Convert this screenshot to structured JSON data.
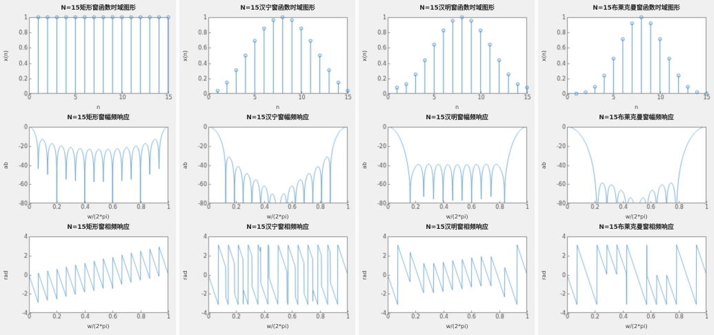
{
  "style": {
    "figure_bg": "#f0f0f0",
    "axes_bg": "#ffffff",
    "axis_color": "#8c8c8c",
    "tick_label_color": "#4d4d4d",
    "line_color": "#4a92cc",
    "title_color": "#262626",
    "page_bg": "#fbfbfb"
  },
  "windows": {
    "rectangular": [
      1,
      1,
      1,
      1,
      1,
      1,
      1,
      1,
      1,
      1,
      1,
      1,
      1,
      1,
      1
    ],
    "hanning": [
      0.0381,
      0.1464,
      0.3087,
      0.5,
      0.6913,
      0.8536,
      0.9619,
      1,
      0.9619,
      0.8536,
      0.6913,
      0.5,
      0.3087,
      0.1464,
      0.0381
    ],
    "hamming": [
      0.08,
      0.1255,
      0.2532,
      0.4376,
      0.6424,
      0.8268,
      0.9544,
      1,
      0.9544,
      0.8268,
      0.6424,
      0.4376,
      0.2532,
      0.1255,
      0.08
    ],
    "blackman": [
      0,
      0.0194,
      0.0905,
      0.2367,
      0.4592,
      0.7139,
      0.9204,
      1,
      0.9204,
      0.7139,
      0.4592,
      0.2367,
      0.0905,
      0.0194,
      0
    ]
  },
  "chart_data": [
    {
      "panel": "rectangular-time",
      "type": "stem",
      "window": "rectangular",
      "title": "N=15矩形窗函数时域图形",
      "xlabel": "n",
      "ylabel": "x(n)",
      "xlim": [
        0,
        15
      ],
      "ylim": [
        0,
        1
      ],
      "xticks": [
        0,
        5,
        10,
        15
      ],
      "yticks": [
        0,
        0.2,
        0.4,
        0.6,
        0.8,
        1
      ],
      "x": [
        1,
        2,
        3,
        4,
        5,
        6,
        7,
        8,
        9,
        10,
        11,
        12,
        13,
        14,
        15
      ],
      "values": [
        1,
        1,
        1,
        1,
        1,
        1,
        1,
        1,
        1,
        1,
        1,
        1,
        1,
        1,
        1
      ]
    },
    {
      "panel": "rectangular-magnitude",
      "type": "line",
      "derived": "dtft_magnitude_db_normalized",
      "window": "rectangular",
      "num_freq_points": 801,
      "title": "N=15矩形窗幅频响应",
      "xlabel": "w/(2*pi)",
      "ylabel": "ab",
      "xlim": [
        0,
        1
      ],
      "ylim": [
        -80,
        0
      ],
      "xticks": [
        0,
        0.2,
        0.4,
        0.6,
        0.8,
        1
      ],
      "yticks": [
        -80,
        -60,
        -40,
        -20,
        0
      ]
    },
    {
      "panel": "rectangular-phase",
      "type": "line",
      "derived": "dtft_phase_rad",
      "window": "rectangular",
      "num_freq_points": 801,
      "title": "N=15矩形窗相频响应",
      "xlabel": "w/(2*pi)",
      "ylabel": "rad",
      "xlim": [
        0,
        1
      ],
      "ylim": [
        -4,
        4
      ],
      "xticks": [
        0,
        0.2,
        0.4,
        0.6,
        0.8,
        1
      ],
      "yticks": [
        -4,
        -2,
        0,
        2,
        4
      ]
    },
    {
      "panel": "hanning-time",
      "type": "stem",
      "window": "hanning",
      "title": "N=15汉宁窗函数时域图形",
      "xlabel": "n",
      "ylabel": "x(n)",
      "xlim": [
        0,
        15
      ],
      "ylim": [
        0,
        1
      ],
      "xticks": [
        0,
        5,
        10,
        15
      ],
      "yticks": [
        0,
        0.2,
        0.4,
        0.6,
        0.8,
        1
      ],
      "x": [
        1,
        2,
        3,
        4,
        5,
        6,
        7,
        8,
        9,
        10,
        11,
        12,
        13,
        14,
        15
      ],
      "values": [
        0.0381,
        0.1464,
        0.3087,
        0.5,
        0.6913,
        0.8536,
        0.9619,
        1,
        0.9619,
        0.8536,
        0.6913,
        0.5,
        0.3087,
        0.1464,
        0.0381
      ]
    },
    {
      "panel": "hanning-magnitude",
      "type": "line",
      "derived": "dtft_magnitude_db_normalized",
      "window": "hanning",
      "num_freq_points": 801,
      "title": "N=15汉宁窗幅频响应",
      "xlabel": "w/(2*pi)",
      "ylabel": "ab",
      "xlim": [
        0,
        1
      ],
      "ylim": [
        -80,
        0
      ],
      "xticks": [
        0,
        0.2,
        0.4,
        0.6,
        0.8,
        1
      ],
      "yticks": [
        -80,
        -60,
        -40,
        -20,
        0
      ]
    },
    {
      "panel": "hanning-phase",
      "type": "line",
      "derived": "dtft_phase_rad",
      "window": "hanning",
      "num_freq_points": 801,
      "title": "N=15汉宁窗相频响应",
      "xlabel": "w/(2*pi)",
      "ylabel": "rad",
      "xlim": [
        0,
        1
      ],
      "ylim": [
        -4,
        4
      ],
      "xticks": [
        0,
        0.2,
        0.4,
        0.6,
        0.8,
        1
      ],
      "yticks": [
        -4,
        -2,
        0,
        2,
        4
      ]
    },
    {
      "panel": "hamming-time",
      "type": "stem",
      "window": "hamming",
      "title": "N=15汉明窗函数时域图形",
      "xlabel": "n",
      "ylabel": "x(n)",
      "xlim": [
        0,
        15
      ],
      "ylim": [
        0,
        1
      ],
      "xticks": [
        0,
        5,
        10,
        15
      ],
      "yticks": [
        0,
        0.2,
        0.4,
        0.6,
        0.8,
        1
      ],
      "x": [
        1,
        2,
        3,
        4,
        5,
        6,
        7,
        8,
        9,
        10,
        11,
        12,
        13,
        14,
        15
      ],
      "values": [
        0.08,
        0.1255,
        0.2532,
        0.4376,
        0.6424,
        0.8268,
        0.9544,
        1,
        0.9544,
        0.8268,
        0.6424,
        0.4376,
        0.2532,
        0.1255,
        0.08
      ]
    },
    {
      "panel": "hamming-magnitude",
      "type": "line",
      "derived": "dtft_magnitude_db_normalized",
      "window": "hamming",
      "num_freq_points": 801,
      "title": "N=15汉明窗幅频响应",
      "xlabel": "w/(2*pi)",
      "ylabel": "ab",
      "xlim": [
        0,
        1
      ],
      "ylim": [
        -80,
        0
      ],
      "xticks": [
        0,
        0.2,
        0.4,
        0.6,
        0.8,
        1
      ],
      "yticks": [
        -80,
        -60,
        -40,
        -20,
        0
      ]
    },
    {
      "panel": "hamming-phase",
      "type": "line",
      "derived": "dtft_phase_rad",
      "window": "hamming",
      "num_freq_points": 801,
      "title": "N=15汉明窗相频响应",
      "xlabel": "w/(2*pi)",
      "ylabel": "rad",
      "xlim": [
        0,
        1
      ],
      "ylim": [
        -4,
        4
      ],
      "xticks": [
        0,
        0.2,
        0.4,
        0.6,
        0.8,
        1
      ],
      "yticks": [
        -4,
        -2,
        0,
        2,
        4
      ]
    },
    {
      "panel": "blackman-time",
      "type": "stem",
      "window": "blackman",
      "title": "N=15布莱克曼窗函数时域图形",
      "xlabel": "n",
      "ylabel": "x(n)",
      "xlim": [
        0,
        15
      ],
      "ylim": [
        0,
        1
      ],
      "xticks": [
        0,
        5,
        10,
        15
      ],
      "yticks": [
        0,
        0.2,
        0.4,
        0.6,
        0.8,
        1
      ],
      "x": [
        1,
        2,
        3,
        4,
        5,
        6,
        7,
        8,
        9,
        10,
        11,
        12,
        13,
        14,
        15
      ],
      "values": [
        0,
        0.0194,
        0.0905,
        0.2367,
        0.4592,
        0.7139,
        0.9204,
        1,
        0.9204,
        0.7139,
        0.4592,
        0.2367,
        0.0905,
        0.0194,
        0
      ]
    },
    {
      "panel": "blackman-magnitude",
      "type": "line",
      "derived": "dtft_magnitude_db_normalized",
      "window": "blackman",
      "num_freq_points": 801,
      "title": "N=15布莱克曼窗幅频响应",
      "xlabel": "w/(2*pi)",
      "ylabel": "ab",
      "xlim": [
        0,
        1
      ],
      "ylim": [
        -80,
        0
      ],
      "xticks": [
        0,
        0.2,
        0.4,
        0.6,
        0.8,
        1
      ],
      "yticks": [
        -80,
        -60,
        -40,
        -20,
        0
      ]
    },
    {
      "panel": "blackman-phase",
      "type": "line",
      "derived": "dtft_phase_rad",
      "window": "blackman",
      "num_freq_points": 801,
      "title": "N=15布莱克曼窗相频响应",
      "xlabel": "w/(2*pi)",
      "ylabel": "rad",
      "xlim": [
        0,
        1
      ],
      "ylim": [
        -4,
        4
      ],
      "xticks": [
        0,
        0.2,
        0.4,
        0.6,
        0.8,
        1
      ],
      "yticks": [
        -4,
        -2,
        0,
        2,
        4
      ]
    }
  ]
}
